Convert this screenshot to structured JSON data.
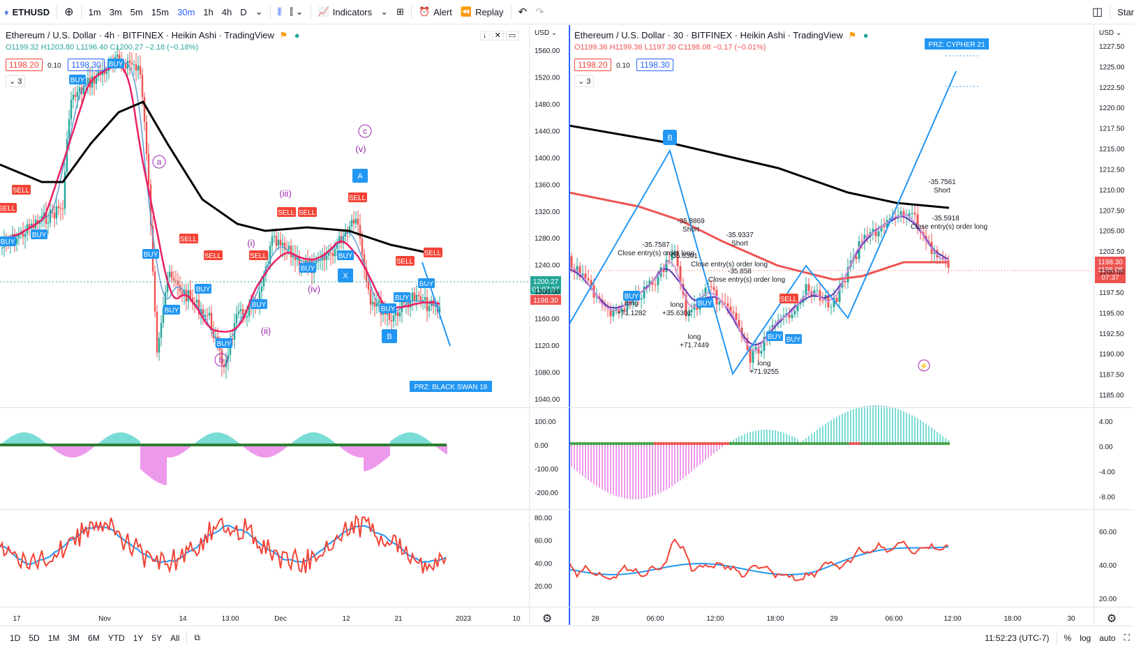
{
  "symbol": "ETHUSD",
  "toolbar": {
    "intervals": [
      "1m",
      "3m",
      "5m",
      "15m",
      "30m",
      "1h",
      "4h",
      "D"
    ],
    "active_interval": "30m",
    "indicators": "Indicators",
    "alert": "Alert",
    "replay": "Replay",
    "right_cut": "Star"
  },
  "left_chart": {
    "title": "Ethereum / U.S. Dollar · 4h · BITFINEX · Heikin Ashi · TradingView",
    "ohlc": {
      "o": "O1199.32",
      "h": "H1203.80",
      "l": "L1196.40",
      "c": "C1200.27",
      "chg": "−2.18 (−0.18%)"
    },
    "bid": "1198.20",
    "spread": "0.10",
    "ask": "1198.30",
    "layers": "3",
    "price_scale": [
      "1560.00",
      "1520.00",
      "1480.00",
      "1440.00",
      "1400.00",
      "1360.00",
      "1320.00",
      "1280.00",
      "1240.00",
      "1200.00",
      "1160.00",
      "1120.00",
      "1080.00",
      "1040.00"
    ],
    "price_tag": "1200.27",
    "countdown": "01:07:37",
    "ask_tag": "1198.30",
    "macd_scale": [
      "100.00",
      "0.00",
      "-100.00",
      "-200.00"
    ],
    "rsi_scale": [
      "80.00",
      "60.00",
      "40.00",
      "20.00"
    ],
    "time_axis": [
      "17",
      "Nov",
      "14",
      "13:00",
      "Dec",
      "12",
      "21",
      "2023",
      "10"
    ],
    "currency": "USD",
    "wave_labels": [
      "(iii)",
      "(i)",
      "(ii)",
      "(iv)",
      "(v)",
      "a",
      "b",
      "c"
    ],
    "pattern_labels": [
      "A",
      "B",
      "X"
    ],
    "prz": "PRZ: BLACK SWAN 18"
  },
  "right_chart": {
    "title": "Ethereum / U.S. Dollar · 30 · BITFINEX · Heikin Ashi · TradingView",
    "ohlc": {
      "o": "O1199.36",
      "h": "H1199.36",
      "l": "L1197.30",
      "c": "C1198.08",
      "chg": "−0.17 (−0.01%)"
    },
    "bid": "1198.20",
    "spread": "0.10",
    "ask": "1198.30",
    "layers": "3",
    "price_scale": [
      "1227.50",
      "1225.00",
      "1222.50",
      "1220.00",
      "1217.50",
      "1215.00",
      "1212.50",
      "1210.00",
      "1207.50",
      "1205.00",
      "1202.50",
      "1200.00",
      "1197.50",
      "1195.00",
      "1192.50",
      "1190.00",
      "1187.50",
      "1185.00"
    ],
    "tags": [
      "1198.30",
      "1198.08",
      "07:37"
    ],
    "macd_scale": [
      "4.00",
      "0.00",
      "-4.00",
      "-8.00"
    ],
    "rsi_scale": [
      "60.00",
      "40.00",
      "20.00"
    ],
    "time_axis": [
      "28",
      "06:00",
      "12:00",
      "18:00",
      "29",
      "06:00",
      "12:00",
      "18:00",
      "30"
    ],
    "currency": "USD",
    "prz": "PRZ: CYPHER 21",
    "b_label": "B",
    "annotations": [
      {
        "t": "-35.7587"
      },
      {
        "t": "Close entry(s) order long"
      },
      {
        "t": "-35.8869"
      },
      {
        "t": "Short"
      },
      {
        "t": "-35.9337"
      },
      {
        "t": "Short"
      },
      {
        "t": "-35.6301"
      },
      {
        "t": "Close entry(s) order long"
      },
      {
        "t": "-35.858"
      },
      {
        "t": "Close entry(s) order long"
      },
      {
        "t": "long"
      },
      {
        "t": "+71.1282"
      },
      {
        "t": "long"
      },
      {
        "t": "+35.6301"
      },
      {
        "t": "long"
      },
      {
        "t": "+71.7449"
      },
      {
        "t": "long"
      },
      {
        "t": "+71.9255"
      },
      {
        "t": "-35.7561"
      },
      {
        "t": "Short"
      },
      {
        "t": "-35.5918"
      },
      {
        "t": "Close entry(s) order long"
      }
    ]
  },
  "bottom": {
    "ranges": [
      "1D",
      "5D",
      "1M",
      "3M",
      "6M",
      "YTD",
      "1Y",
      "5Y",
      "All"
    ],
    "clock": "11:52:23 (UTC-7)",
    "percent": "%",
    "log": "log",
    "auto": "auto"
  },
  "colors": {
    "up": "#26a69a",
    "down": "#ef5350",
    "blue": "#2962ff",
    "buy": "#2196f3",
    "sell": "#f44336",
    "ma": "#000000"
  }
}
